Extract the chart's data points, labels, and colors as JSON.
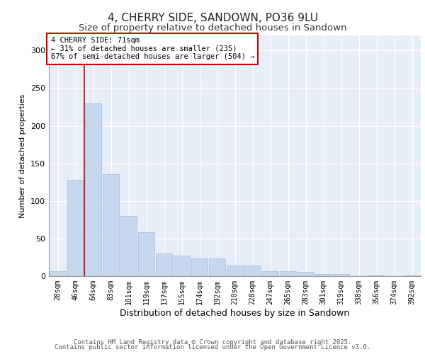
{
  "title": "4, CHERRY SIDE, SANDOWN, PO36 9LU",
  "subtitle": "Size of property relative to detached houses in Sandown",
  "xlabel": "Distribution of detached houses by size in Sandown",
  "ylabel": "Number of detached properties",
  "categories": [
    "28sqm",
    "46sqm",
    "64sqm",
    "83sqm",
    "101sqm",
    "119sqm",
    "137sqm",
    "155sqm",
    "174sqm",
    "192sqm",
    "210sqm",
    "228sqm",
    "247sqm",
    "265sqm",
    "283sqm",
    "301sqm",
    "319sqm",
    "338sqm",
    "356sqm",
    "374sqm",
    "392sqm"
  ],
  "values": [
    7,
    128,
    230,
    136,
    80,
    58,
    30,
    27,
    24,
    24,
    14,
    14,
    7,
    7,
    6,
    3,
    3,
    0,
    1,
    0,
    1
  ],
  "bar_color": "#c5d8ed",
  "bar_edgecolor": "#a0bcd8",
  "background_color": "#e8eef8",
  "grid_color": "#ffffff",
  "vline_x": 1.5,
  "vline_color": "#cc0000",
  "annotation_text": "4 CHERRY SIDE: 71sqm\n← 31% of detached houses are smaller (235)\n67% of semi-detached houses are larger (504) →",
  "annotation_box_facecolor": "#ffffff",
  "annotation_box_edgecolor": "#cc0000",
  "footer_line1": "Contains HM Land Registry data © Crown copyright and database right 2025.",
  "footer_line2": "Contains public sector information licensed under the Open Government Licence v3.0.",
  "ylim": [
    0,
    320
  ],
  "title_fontsize": 11,
  "subtitle_fontsize": 9.5,
  "xlabel_fontsize": 9,
  "ylabel_fontsize": 8,
  "tick_fontsize": 7,
  "annotation_fontsize": 7.5,
  "footer_fontsize": 6.5
}
